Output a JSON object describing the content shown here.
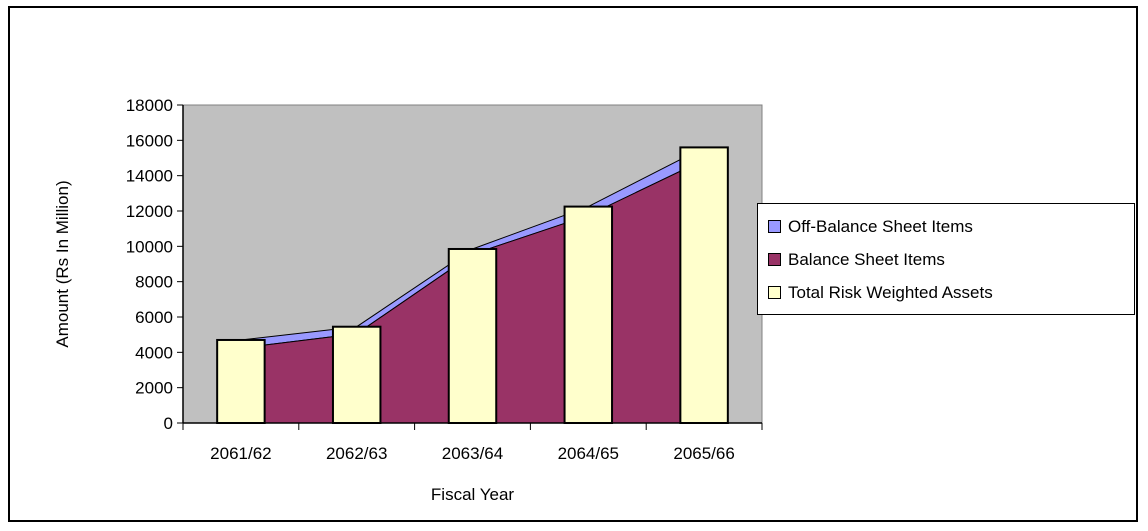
{
  "chart_data": {
    "type": "bar",
    "title": "",
    "xlabel": "Fiscal Year",
    "ylabel": "Amount (Rs In Million)",
    "ylim": [
      0,
      18000
    ],
    "yticks": [
      0,
      2000,
      4000,
      6000,
      8000,
      10000,
      12000,
      14000,
      16000,
      18000
    ],
    "categories": [
      "2061/62",
      "2062/63",
      "2063/64",
      "2064/65",
      "2065/66"
    ],
    "series": [
      {
        "name": "Off-Balance Sheet Items",
        "type": "area",
        "values": [
          450,
          400,
          300,
          500,
          700
        ],
        "color": "#9999ff"
      },
      {
        "name": "Balance Sheet Items",
        "type": "area",
        "values": [
          4250,
          5050,
          9550,
          11750,
          14900
        ],
        "color": "#993366"
      },
      {
        "name": "Total Risk Weighted Assets",
        "type": "bar",
        "values": [
          4700,
          5450,
          9850,
          12250,
          15600
        ],
        "color": "#ffffcc"
      }
    ],
    "plot_background": "#c0c0c0",
    "grid": false,
    "legend_position": "right"
  }
}
